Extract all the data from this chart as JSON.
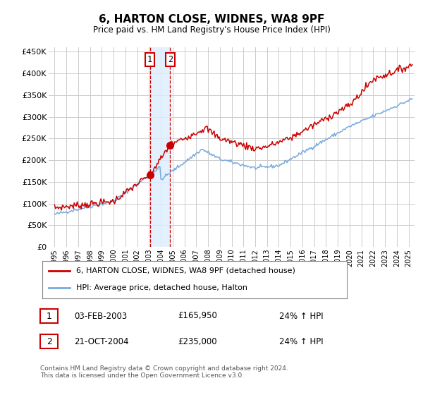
{
  "title": "6, HARTON CLOSE, WIDNES, WA8 9PF",
  "subtitle": "Price paid vs. HM Land Registry's House Price Index (HPI)",
  "ylim": [
    0,
    460000
  ],
  "xlim_start": 1994.5,
  "xlim_end": 2025.5,
  "red_line_label": "6, HARTON CLOSE, WIDNES, WA8 9PF (detached house)",
  "blue_line_label": "HPI: Average price, detached house, Halton",
  "transaction1_label": "1",
  "transaction1_date": "03-FEB-2003",
  "transaction1_price": "£165,950",
  "transaction1_hpi": "24% ↑ HPI",
  "transaction1_year": 2003.08,
  "transaction1_value": 165950,
  "transaction2_label": "2",
  "transaction2_date": "21-OCT-2004",
  "transaction2_price": "£235,000",
  "transaction2_hpi": "24% ↑ HPI",
  "transaction2_year": 2004.8,
  "transaction2_value": 235000,
  "footer": "Contains HM Land Registry data © Crown copyright and database right 2024.\nThis data is licensed under the Open Government Licence v3.0.",
  "background_color": "#ffffff",
  "grid_color": "#cccccc",
  "red_color": "#cc0000",
  "blue_color": "#7aaadd",
  "shade_color": "#ddeeff"
}
